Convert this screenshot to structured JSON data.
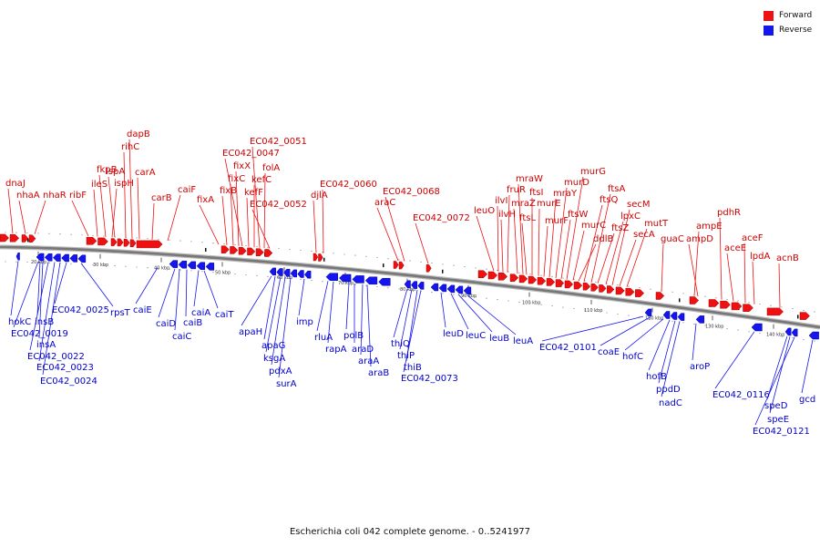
{
  "caption": "Escherichia coli 042 complete genome. - 0..5241977",
  "legend": [
    {
      "label": "Forward",
      "color": "#ee1111"
    },
    {
      "label": "Reverse",
      "color": "#1515ee"
    }
  ],
  "colors": {
    "forward": "#ee1111",
    "reverse": "#1515ee",
    "backbone": "#777777"
  },
  "scale_unit": "kbp",
  "ticks": [
    20,
    30,
    40,
    50,
    60,
    70,
    80,
    90,
    100,
    110,
    120,
    130,
    140
  ],
  "forward_genes": [
    "dnaJ",
    "nhaA",
    "nhaR",
    "ribF",
    "ileS",
    "fkpB",
    "ispH",
    "lspA",
    "rihC",
    "dapB",
    "carA",
    "carB",
    "caiF",
    "fixA",
    "fixB",
    "fixC",
    "fixX",
    "EC042_0047",
    "kefF",
    "kefC",
    "EC042_0051",
    "folA",
    "EC042_0052",
    "djlA",
    "EC042_0060",
    "araC",
    "EC042_0068",
    "EC042_0072",
    "leuO",
    "ilvI",
    "ilvH",
    "fruR",
    "mraZ",
    "mraW",
    "ftsL",
    "ftsI",
    "murE",
    "murF",
    "mraY",
    "murD",
    "ftsW",
    "murG",
    "murC",
    "ddlB",
    "ftsQ",
    "ftsA",
    "ftsZ",
    "lpxC",
    "secM",
    "secA",
    "mutT",
    "guaC",
    "ampD",
    "ampE",
    "pdhR",
    "aceE",
    "aceF",
    "lpdA",
    "acnB"
  ],
  "reverse_genes": [
    "hokC",
    "EC042_0019",
    "insB",
    "insA",
    "EC042_0022",
    "EC042_0023",
    "EC042_0024",
    "EC042_0025",
    "rpsT",
    "caiE",
    "caiD",
    "caiC",
    "caiB",
    "caiA",
    "caiT",
    "apaH",
    "apaG",
    "ksgA",
    "pdxA",
    "surA",
    "imp",
    "rluA",
    "rapA",
    "polB",
    "araD",
    "araA",
    "araB",
    "thiQ",
    "thiP",
    "thiB",
    "EC042_0073",
    "leuD",
    "leuC",
    "leuB",
    "leuA",
    "EC042_0101",
    "coaE",
    "hofC",
    "hofB",
    "ppdD",
    "nadC",
    "aroP",
    "EC042_0116",
    "speD",
    "speE",
    "EC042_0121",
    "gcd"
  ]
}
